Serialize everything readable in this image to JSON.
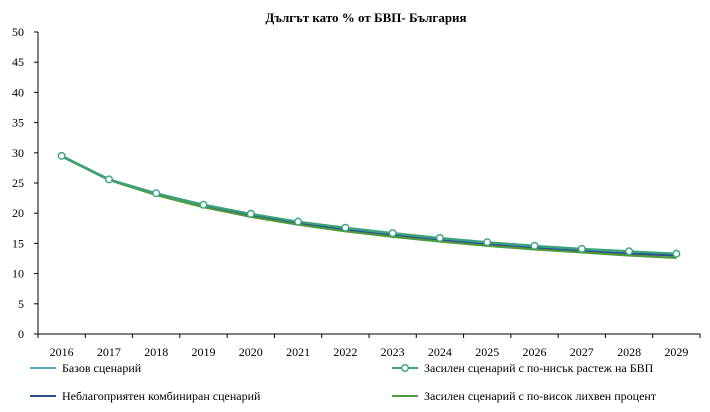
{
  "chart_data": {
    "type": "line",
    "title": "Дългът като % от БВП- България",
    "xlabel": "",
    "ylabel": "",
    "x": [
      2016,
      2017,
      2018,
      2019,
      2020,
      2021,
      2022,
      2023,
      2024,
      2025,
      2026,
      2027,
      2028,
      2029
    ],
    "ylim": [
      0,
      50
    ],
    "yticks": [
      0,
      5,
      10,
      15,
      20,
      25,
      30,
      35,
      40,
      45,
      50
    ],
    "grid": false,
    "legend_position": "bottom",
    "series": [
      {
        "name": "Базов сценарий",
        "color": "#5aa9c7",
        "marker": "none",
        "values": [
          29.5,
          25.6,
          23.2,
          21.3,
          19.7,
          18.4,
          17.4,
          16.5,
          15.7,
          15.1,
          14.5,
          14.0,
          13.6,
          13.3
        ]
      },
      {
        "name": "Засилен сценарий с по-нисък растеж на БВП",
        "color": "#3aa37d",
        "marker": "circle",
        "values": [
          29.5,
          25.6,
          23.3,
          21.4,
          19.9,
          18.6,
          17.6,
          16.7,
          15.9,
          15.2,
          14.6,
          14.1,
          13.7,
          13.3
        ]
      },
      {
        "name": "Неблагоприятен комбиниран сценарий",
        "color": "#2e4f8a",
        "marker": "none",
        "values": [
          29.4,
          25.6,
          23.1,
          21.2,
          19.6,
          18.3,
          17.2,
          16.3,
          15.5,
          14.8,
          14.2,
          13.7,
          13.3,
          13.0
        ]
      },
      {
        "name": "Засилен сценарий с по-висок лихвен процент",
        "color": "#4f9a3c",
        "marker": "none",
        "values": [
          29.4,
          25.5,
          23.0,
          21.0,
          19.4,
          18.1,
          17.0,
          16.1,
          15.3,
          14.6,
          14.0,
          13.5,
          13.0,
          12.6
        ]
      }
    ]
  }
}
